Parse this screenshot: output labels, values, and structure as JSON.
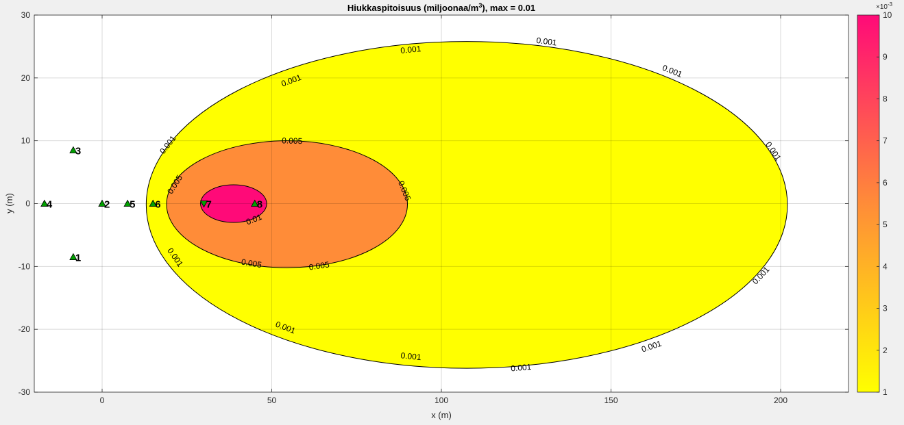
{
  "chart_data": {
    "type": "contour",
    "title_main": "Hiukkaspitoisuus (miljoonaa/m",
    "title_sup": "3",
    "title_tail": "), max =  0.01",
    "xlabel": "x (m)",
    "ylabel": "y (m)",
    "xlim": [
      -20,
      220
    ],
    "ylim": [
      -30,
      30
    ],
    "x_ticks": [
      0,
      50,
      100,
      150,
      200
    ],
    "x_tick_labels": [
      "0",
      "50",
      "100",
      "150",
      "200"
    ],
    "y_ticks": [
      30,
      20,
      10,
      0,
      -10,
      -20,
      -30
    ],
    "y_tick_labels": [
      "30",
      "20",
      "10",
      "0",
      "-10",
      "-20",
      "-30"
    ],
    "grid": true,
    "contour_levels": [
      {
        "level": 0.001,
        "label": "0.001",
        "color": "#ffff00",
        "x_min": 13,
        "x_max": 202,
        "y_min": -26.2,
        "y_max": 25.8,
        "labels_at": [
          [
            91,
            24.4
          ],
          [
            131,
            25.7
          ],
          [
            168,
            21
          ],
          [
            197.7,
            8.3
          ],
          [
            194.3,
            -11.5
          ],
          [
            162,
            -22.8
          ],
          [
            123.5,
            -26.2
          ],
          [
            91,
            -24.4
          ],
          [
            54,
            -19.8
          ],
          [
            21.4,
            -8.6
          ],
          [
            19.5,
            9.3
          ],
          [
            55.8,
            19.5
          ]
        ]
      },
      {
        "level": 0.005,
        "label": "0.005",
        "color": "#ff8c38",
        "x_min": 19,
        "x_max": 90,
        "y_min": -10.2,
        "y_max": 10,
        "labels_at": [
          [
            56,
            9.9
          ],
          [
            89,
            2
          ],
          [
            64,
            -10
          ],
          [
            44,
            -9.6
          ],
          [
            21.6,
            3
          ]
        ]
      },
      {
        "level": 0.01,
        "label": "0.01",
        "color": "#ff0a78",
        "x_min": 29,
        "x_max": 48.5,
        "y_min": -3,
        "y_max": 3,
        "labels_at": [
          [
            44.8,
            -2.6
          ]
        ]
      }
    ],
    "points": [
      {
        "label": "1",
        "x": -8.5,
        "y": -8.5,
        "marker": "triangle-up"
      },
      {
        "label": "2",
        "x": 0,
        "y": 0,
        "marker": "triangle-up"
      },
      {
        "label": "3",
        "x": -8.5,
        "y": 8.5,
        "marker": "triangle-up"
      },
      {
        "label": "4",
        "x": -17,
        "y": 0,
        "marker": "triangle-up"
      },
      {
        "label": "5",
        "x": 7.5,
        "y": 0,
        "marker": "triangle-up"
      },
      {
        "label": "6",
        "x": 15,
        "y": 0,
        "marker": "triangle-up"
      },
      {
        "label": "7",
        "x": 30,
        "y": 0,
        "marker": "triangle-down"
      },
      {
        "label": "8",
        "x": 45,
        "y": 0,
        "marker": "triangle-up"
      }
    ],
    "marker_color": "#00a000",
    "background_color": "#ffffff",
    "colorbar": {
      "min": 1,
      "max": 10,
      "ticks": [
        1,
        2,
        3,
        4,
        5,
        6,
        7,
        8,
        9,
        10
      ],
      "tick_labels": [
        "1",
        "2",
        "3",
        "4",
        "5",
        "6",
        "7",
        "8",
        "9",
        "10"
      ],
      "exponent_label": "×10",
      "exponent_sup": "-3",
      "color_low": "#ffff00",
      "color_mid": "#ff8c38",
      "color_high": "#ff0a78"
    }
  }
}
